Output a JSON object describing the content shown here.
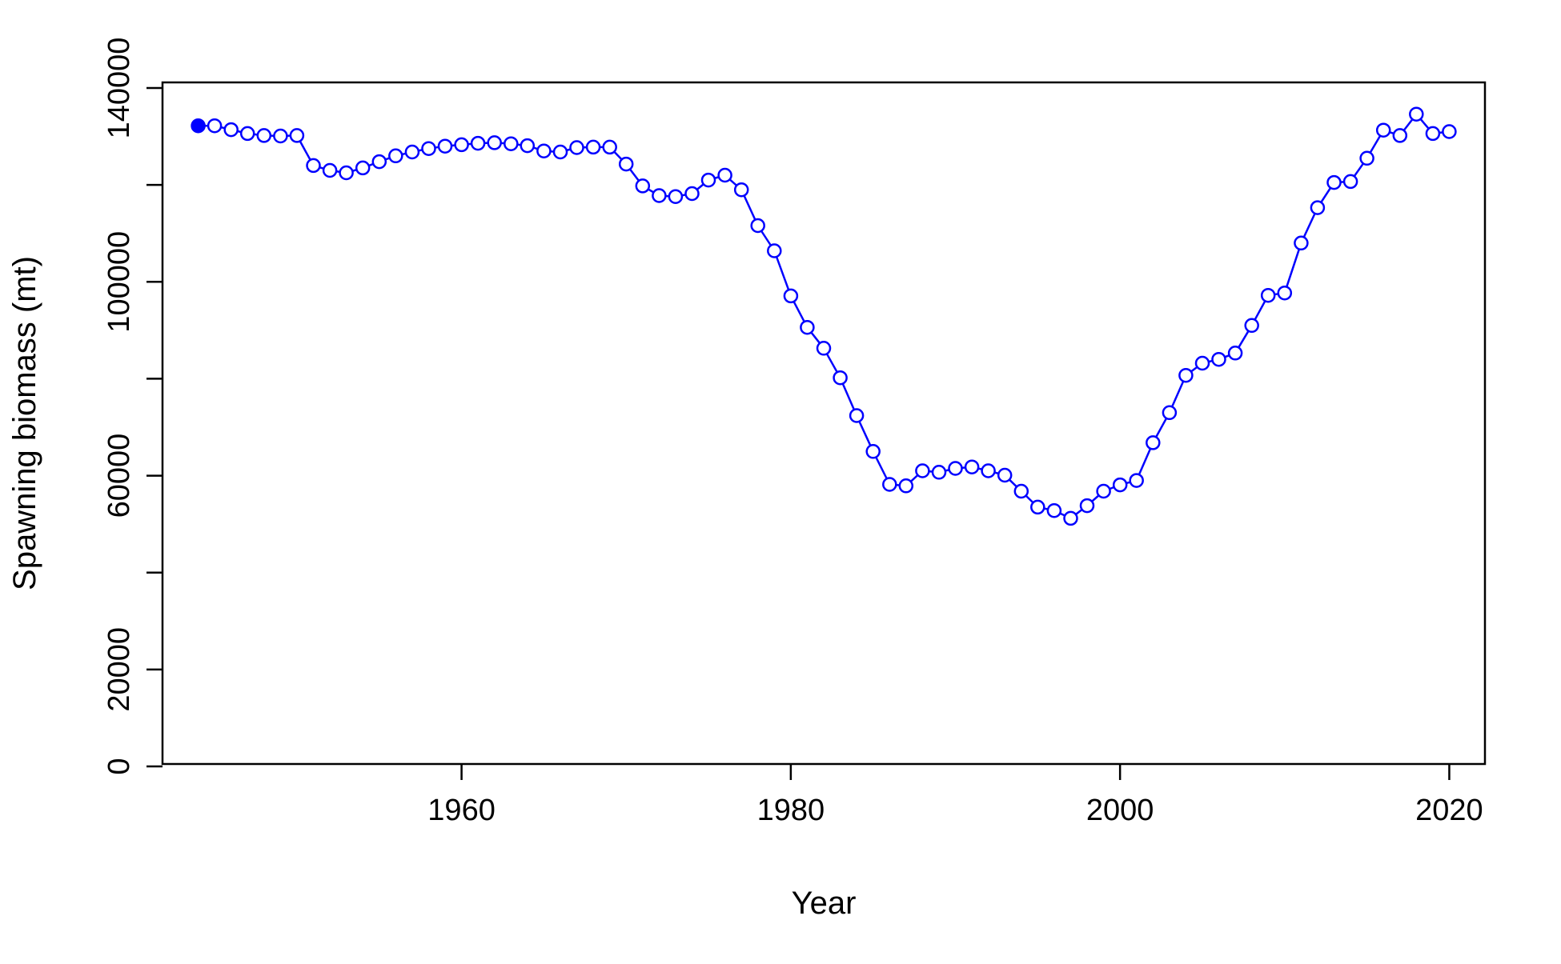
{
  "chart_data": {
    "type": "line",
    "xlabel": "Year",
    "ylabel": "Spawning biomass (mt)",
    "xlim": [
      1942,
      2024
    ],
    "ylim": [
      0,
      140000
    ],
    "x_ticks": [
      1960,
      1980,
      2000,
      2020
    ],
    "y_ticks": [
      0,
      20000,
      40000,
      60000,
      80000,
      100000,
      120000,
      140000
    ],
    "x_tick_labels": [
      "1960",
      "1980",
      "2000",
      "2020"
    ],
    "y_tick_labels": [
      "0",
      "20000",
      "",
      "60000",
      "",
      "100000",
      "",
      "140000"
    ],
    "grid": false,
    "line_color": "#0000FF",
    "series": [
      {
        "x": [
          1944,
          1945,
          1946,
          1947,
          1948,
          1949,
          1950,
          1951,
          1952,
          1953,
          1954,
          1955,
          1956,
          1957,
          1958,
          1959,
          1960,
          1961,
          1962,
          1963,
          1964,
          1965,
          1966,
          1967,
          1968,
          1969,
          1970,
          1971,
          1972,
          1973,
          1974,
          1975,
          1976,
          1977,
          1978,
          1979,
          1980,
          1981,
          1982,
          1983,
          1984,
          1985,
          1986,
          1987,
          1988,
          1989,
          1990,
          1991,
          1992,
          1993,
          1994,
          1995,
          1996,
          1997,
          1998,
          1999,
          2000,
          2001,
          2002,
          2003,
          2004,
          2005,
          2006,
          2007,
          2008,
          2009,
          2010,
          2011,
          2012,
          2013,
          2014,
          2015,
          2016,
          2017,
          2018,
          2019,
          2020
        ],
        "y": [
          132200,
          132200,
          131400,
          130600,
          130200,
          130100,
          130200,
          124000,
          123000,
          122500,
          123500,
          124800,
          126000,
          126800,
          127500,
          128000,
          128300,
          128600,
          128700,
          128500,
          128100,
          127000,
          126800,
          127700,
          127800,
          127800,
          124300,
          119800,
          117800,
          117600,
          118200,
          121000,
          122000,
          119000,
          111600,
          106400,
          97100,
          90600,
          86300,
          80200,
          72400,
          65000,
          58200,
          57900,
          61000,
          60700,
          61500,
          61800,
          61000,
          60100,
          56800,
          53500,
          52800,
          51200,
          53800,
          56800,
          58100,
          59000,
          66800,
          73000,
          80700,
          83200,
          84000,
          85300,
          91000,
          97200,
          97700,
          108000,
          115300,
          120500,
          120700,
          125500,
          131300,
          130200,
          134600,
          130600,
          131000
        ],
        "filled_first_point": true
      }
    ]
  }
}
